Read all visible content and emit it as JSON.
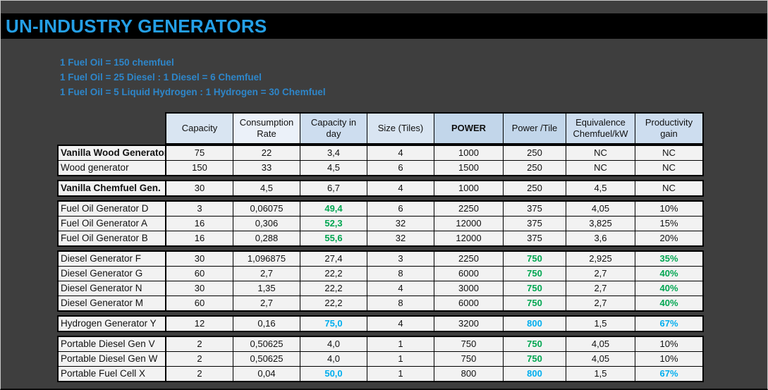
{
  "window": {
    "title": "UN-INDUSTRY GENERATORS"
  },
  "notes": [
    "1 Fuel Oil = 150 chemfuel",
    "1 Fuel Oil = 25 Diesel : 1 Diesel = 6 Chemfuel",
    "1 Fuel Oil = 5 Liquid Hydrogen : 1 Hydrogen = 30 Chemfuel"
  ],
  "colors": {
    "background": "#3E3E3E",
    "title_bar": "#000000",
    "accent_blue": "#249FE6",
    "notes_blue": "#2E86C9",
    "value_green": "#00A651",
    "value_cyan": "#00AEEF",
    "cell_bg": "#F2F2F2",
    "header_bg_light": "#D9E5F2",
    "header_bg_lighter": "#EBF1F9",
    "header_bg_medium": "#CDDDEF",
    "header_bg_dark": "#C2D6EA"
  },
  "table": {
    "columns": [
      {
        "label": "Capacity",
        "shade": "light"
      },
      {
        "label": "Consumption Rate",
        "shade": "lighter"
      },
      {
        "label": "Capacity in day",
        "shade": "medium"
      },
      {
        "label": "Size (Tiles)",
        "shade": "light"
      },
      {
        "label": "POWER",
        "shade": "dark",
        "bold": true
      },
      {
        "label": "Power /Tile",
        "shade": "dark"
      },
      {
        "label": "Equivalence Chemfuel/kW",
        "shade": "medium"
      },
      {
        "label": "Productivity gain",
        "shade": "medium"
      }
    ],
    "groups": [
      {
        "rows": [
          {
            "name": "Vanilla Wood Generator",
            "bold": true,
            "cells": [
              {
                "v": "75"
              },
              {
                "v": "22"
              },
              {
                "v": "3,4"
              },
              {
                "v": "4"
              },
              {
                "v": "1000"
              },
              {
                "v": "250"
              },
              {
                "v": "NC"
              },
              {
                "v": "NC"
              }
            ]
          },
          {
            "name": "Wood generator",
            "cells": [
              {
                "v": "150"
              },
              {
                "v": "33"
              },
              {
                "v": "4,5"
              },
              {
                "v": "6"
              },
              {
                "v": "1500"
              },
              {
                "v": "250"
              },
              {
                "v": "NC"
              },
              {
                "v": "NC"
              }
            ]
          }
        ]
      },
      {
        "rows": [
          {
            "name": "Vanilla Chemfuel Gen.",
            "bold": true,
            "cells": [
              {
                "v": "30"
              },
              {
                "v": "4,5"
              },
              {
                "v": "6,7"
              },
              {
                "v": "4"
              },
              {
                "v": "1000"
              },
              {
                "v": "250"
              },
              {
                "v": "4,5"
              },
              {
                "v": "NC"
              }
            ]
          }
        ]
      },
      {
        "rows": [
          {
            "name": "Fuel Oil Generator D",
            "cells": [
              {
                "v": "3"
              },
              {
                "v": "0,06075"
              },
              {
                "v": "49,4",
                "c": "green"
              },
              {
                "v": "6"
              },
              {
                "v": "2250"
              },
              {
                "v": "375"
              },
              {
                "v": "4,05"
              },
              {
                "v": "10%"
              }
            ]
          },
          {
            "name": "Fuel Oil Generator A",
            "cells": [
              {
                "v": "16"
              },
              {
                "v": "0,306"
              },
              {
                "v": "52,3",
                "c": "green"
              },
              {
                "v": "32"
              },
              {
                "v": "12000"
              },
              {
                "v": "375"
              },
              {
                "v": "3,825"
              },
              {
                "v": "15%"
              }
            ]
          },
          {
            "name": "Fuel Oil Generator B",
            "cells": [
              {
                "v": "16"
              },
              {
                "v": "0,288"
              },
              {
                "v": "55,6",
                "c": "green"
              },
              {
                "v": "32"
              },
              {
                "v": "12000"
              },
              {
                "v": "375"
              },
              {
                "v": "3,6"
              },
              {
                "v": "20%"
              }
            ]
          }
        ]
      },
      {
        "rows": [
          {
            "name": "Diesel Generator F",
            "cells": [
              {
                "v": "30"
              },
              {
                "v": "1,096875"
              },
              {
                "v": "27,4"
              },
              {
                "v": "3"
              },
              {
                "v": "2250"
              },
              {
                "v": "750",
                "c": "green"
              },
              {
                "v": "2,925"
              },
              {
                "v": "35%",
                "c": "green"
              }
            ]
          },
          {
            "name": "Diesel Generator G",
            "cells": [
              {
                "v": "60"
              },
              {
                "v": "2,7"
              },
              {
                "v": "22,2"
              },
              {
                "v": "8"
              },
              {
                "v": "6000"
              },
              {
                "v": "750",
                "c": "green"
              },
              {
                "v": "2,7"
              },
              {
                "v": "40%",
                "c": "green"
              }
            ]
          },
          {
            "name": "Diesel Generator N",
            "cells": [
              {
                "v": "30"
              },
              {
                "v": "1,35"
              },
              {
                "v": "22,2"
              },
              {
                "v": "4"
              },
              {
                "v": "3000"
              },
              {
                "v": "750",
                "c": "green"
              },
              {
                "v": "2,7"
              },
              {
                "v": "40%",
                "c": "green"
              }
            ]
          },
          {
            "name": "Diesel Generator M",
            "cells": [
              {
                "v": "60"
              },
              {
                "v": "2,7"
              },
              {
                "v": "22,2"
              },
              {
                "v": "8"
              },
              {
                "v": "6000"
              },
              {
                "v": "750",
                "c": "green"
              },
              {
                "v": "2,7"
              },
              {
                "v": "40%",
                "c": "green"
              }
            ]
          }
        ]
      },
      {
        "rows": [
          {
            "name": "Hydrogen Generator Y",
            "cells": [
              {
                "v": "12"
              },
              {
                "v": "0,16"
              },
              {
                "v": "75,0",
                "c": "cyan"
              },
              {
                "v": "4"
              },
              {
                "v": "3200"
              },
              {
                "v": "800",
                "c": "cyan"
              },
              {
                "v": "1,5"
              },
              {
                "v": "67%",
                "c": "cyan"
              }
            ]
          }
        ]
      },
      {
        "rows": [
          {
            "name": "Portable Diesel Gen V",
            "cells": [
              {
                "v": "2"
              },
              {
                "v": "0,50625"
              },
              {
                "v": "4,0"
              },
              {
                "v": "1"
              },
              {
                "v": "750"
              },
              {
                "v": "750",
                "c": "green"
              },
              {
                "v": "4,05"
              },
              {
                "v": "10%"
              }
            ]
          },
          {
            "name": "Portable Diesel Gen W",
            "cells": [
              {
                "v": "2"
              },
              {
                "v": "0,50625"
              },
              {
                "v": "4,0"
              },
              {
                "v": "1"
              },
              {
                "v": "750"
              },
              {
                "v": "750",
                "c": "green"
              },
              {
                "v": "4,05"
              },
              {
                "v": "10%"
              }
            ]
          },
          {
            "name": "Portable Fuel Cell X",
            "cells": [
              {
                "v": "2"
              },
              {
                "v": "0,04"
              },
              {
                "v": "50,0",
                "c": "cyan"
              },
              {
                "v": "1"
              },
              {
                "v": "800"
              },
              {
                "v": "800",
                "c": "cyan"
              },
              {
                "v": "1,5"
              },
              {
                "v": "67%",
                "c": "cyan"
              }
            ]
          }
        ]
      }
    ]
  }
}
